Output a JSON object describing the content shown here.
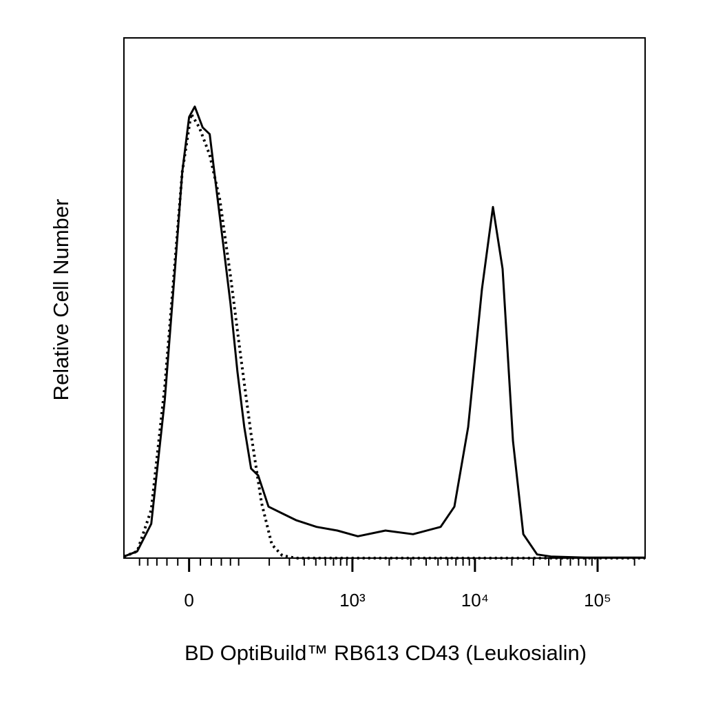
{
  "chart_data": {
    "type": "line",
    "xlabel": "BD OptiBuild™ RB613 CD43 (Leukosialin)",
    "ylabel": "Relative Cell Number",
    "xscale": "asinh",
    "xlim": [
      -145,
      244000
    ],
    "ylim": [
      0,
      100
    ],
    "xticks": [
      0,
      {
        "value": 1000,
        "label": "10³"
      },
      {
        "value": 10000,
        "label": "10⁴"
      },
      {
        "value": 100000,
        "label": "10⁵"
      }
    ],
    "xminorticks": [
      -100,
      -80,
      -60,
      -40,
      -20,
      20,
      40,
      60,
      80,
      100,
      200,
      300,
      400,
      500,
      600,
      700,
      800,
      900,
      2000,
      3000,
      4000,
      5000,
      6000,
      7000,
      8000,
      9000,
      20000,
      30000,
      40000,
      50000,
      60000,
      70000,
      80000,
      90000,
      200000
    ],
    "series": [
      {
        "color": "#000000",
        "linestyle": "solid",
        "x": [
          -145,
          -106,
          -72,
          -44,
          -24,
          -12,
          0,
          10,
          24,
          37,
          51,
          65,
          80,
          97,
          115,
          135,
          158,
          197,
          260,
          341,
          507,
          751,
          1109,
          1864,
          3127,
          5249,
          6800,
          8800,
          11400,
          14030,
          16810,
          20430,
          24800,
          32120,
          41610,
          79400,
          244000
        ],
        "values": [
          0.3,
          1.3,
          6.6,
          30.5,
          57.0,
          74.2,
          84.8,
          86.8,
          82.8,
          81.5,
          70.2,
          59.6,
          49.0,
          35.8,
          25.2,
          17.2,
          15.9,
          9.9,
          8.6,
          7.3,
          6.0,
          5.3,
          4.2,
          5.3,
          4.6,
          6.0,
          9.9,
          25.2,
          51.7,
          67.5,
          55.6,
          22.5,
          4.6,
          0.7,
          0.3,
          0.1,
          0.1
        ]
      },
      {
        "color": "#000000",
        "linestyle": "dotted",
        "x": [
          -145,
          -106,
          -72,
          -44,
          -24,
          -12,
          3.6,
          18,
          37,
          57,
          80,
          106,
          135,
          170,
          211,
          260,
          341,
          244000
        ],
        "values": [
          0.3,
          1.3,
          9.3,
          33.1,
          58.3,
          74.2,
          85.4,
          82.8,
          77.5,
          68.9,
          54.3,
          38.4,
          23.8,
          10.6,
          2.6,
          0.5,
          0,
          0
        ]
      }
    ]
  }
}
